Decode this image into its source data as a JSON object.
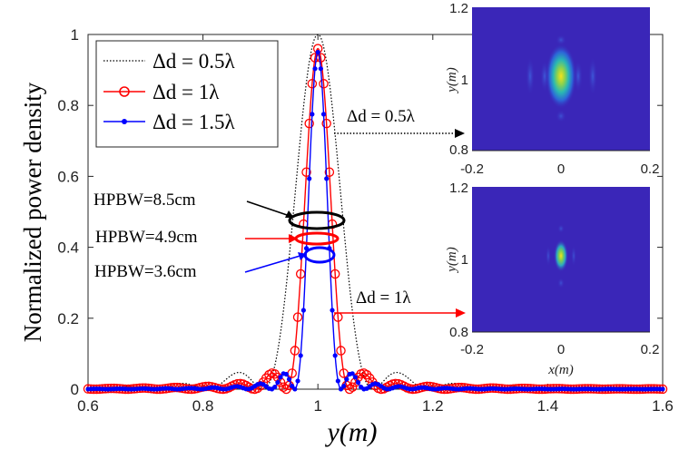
{
  "chart_data": {
    "type": "line",
    "xlabel": "y(m)",
    "ylabel": "Normalized power density",
    "xlim": [
      0.6,
      1.6
    ],
    "ylim": [
      0,
      1
    ],
    "xticks": [
      "0.6",
      "0.8",
      "1",
      "1.2",
      "1.4",
      "1.6"
    ],
    "yticks": [
      "0",
      "0.2",
      "0.4",
      "0.6",
      "0.8",
      "1"
    ],
    "series": [
      {
        "name": "Δd = 0.5λ",
        "style": "dotted",
        "color": "#000000",
        "hpbw_m": 0.085,
        "peak": 1.0,
        "sidelobe": 0.03
      },
      {
        "name": "Δd = 1λ",
        "style": "circle-markers",
        "color": "#ff0000",
        "hpbw_m": 0.049,
        "peak": 0.96,
        "sidelobe": 0.06
      },
      {
        "name": "Δd = 1.5λ",
        "style": "dot-markers",
        "color": "#0000ff",
        "hpbw_m": 0.036,
        "peak": 0.95,
        "sidelobe": 0.065
      }
    ],
    "annotations": [
      {
        "text": "HPBW=8.5cm",
        "color": "#000000"
      },
      {
        "text": "HPBW=4.9cm",
        "color": "#ff0000"
      },
      {
        "text": "HPBW=3.6cm",
        "color": "#0000ff"
      },
      {
        "text": "Δd = 0.5λ",
        "target": "inset-top"
      },
      {
        "text": "Δd = 1λ",
        "target": "inset-bottom"
      }
    ],
    "insets": [
      {
        "name": "Δd = 0.5λ",
        "xlabel": "",
        "ylabel": "y(m)",
        "xticks": [
          "-0.2",
          "0",
          "0.2"
        ],
        "yticks": [
          "0.8",
          "1",
          "1.2"
        ],
        "xlim": [
          -0.2,
          0.2
        ],
        "ylim": [
          0.8,
          1.2
        ],
        "spot_width_rel": 1.0
      },
      {
        "name": "Δd = 1λ",
        "xlabel": "x(m)",
        "ylabel": "y(m)",
        "xticks": [
          "-0.2",
          "0",
          "0.2"
        ],
        "yticks": [
          "0.8",
          "1",
          "1.2"
        ],
        "xlim": [
          -0.2,
          0.2
        ],
        "ylim": [
          0.8,
          1.2
        ],
        "spot_width_rel": 0.55
      }
    ]
  }
}
